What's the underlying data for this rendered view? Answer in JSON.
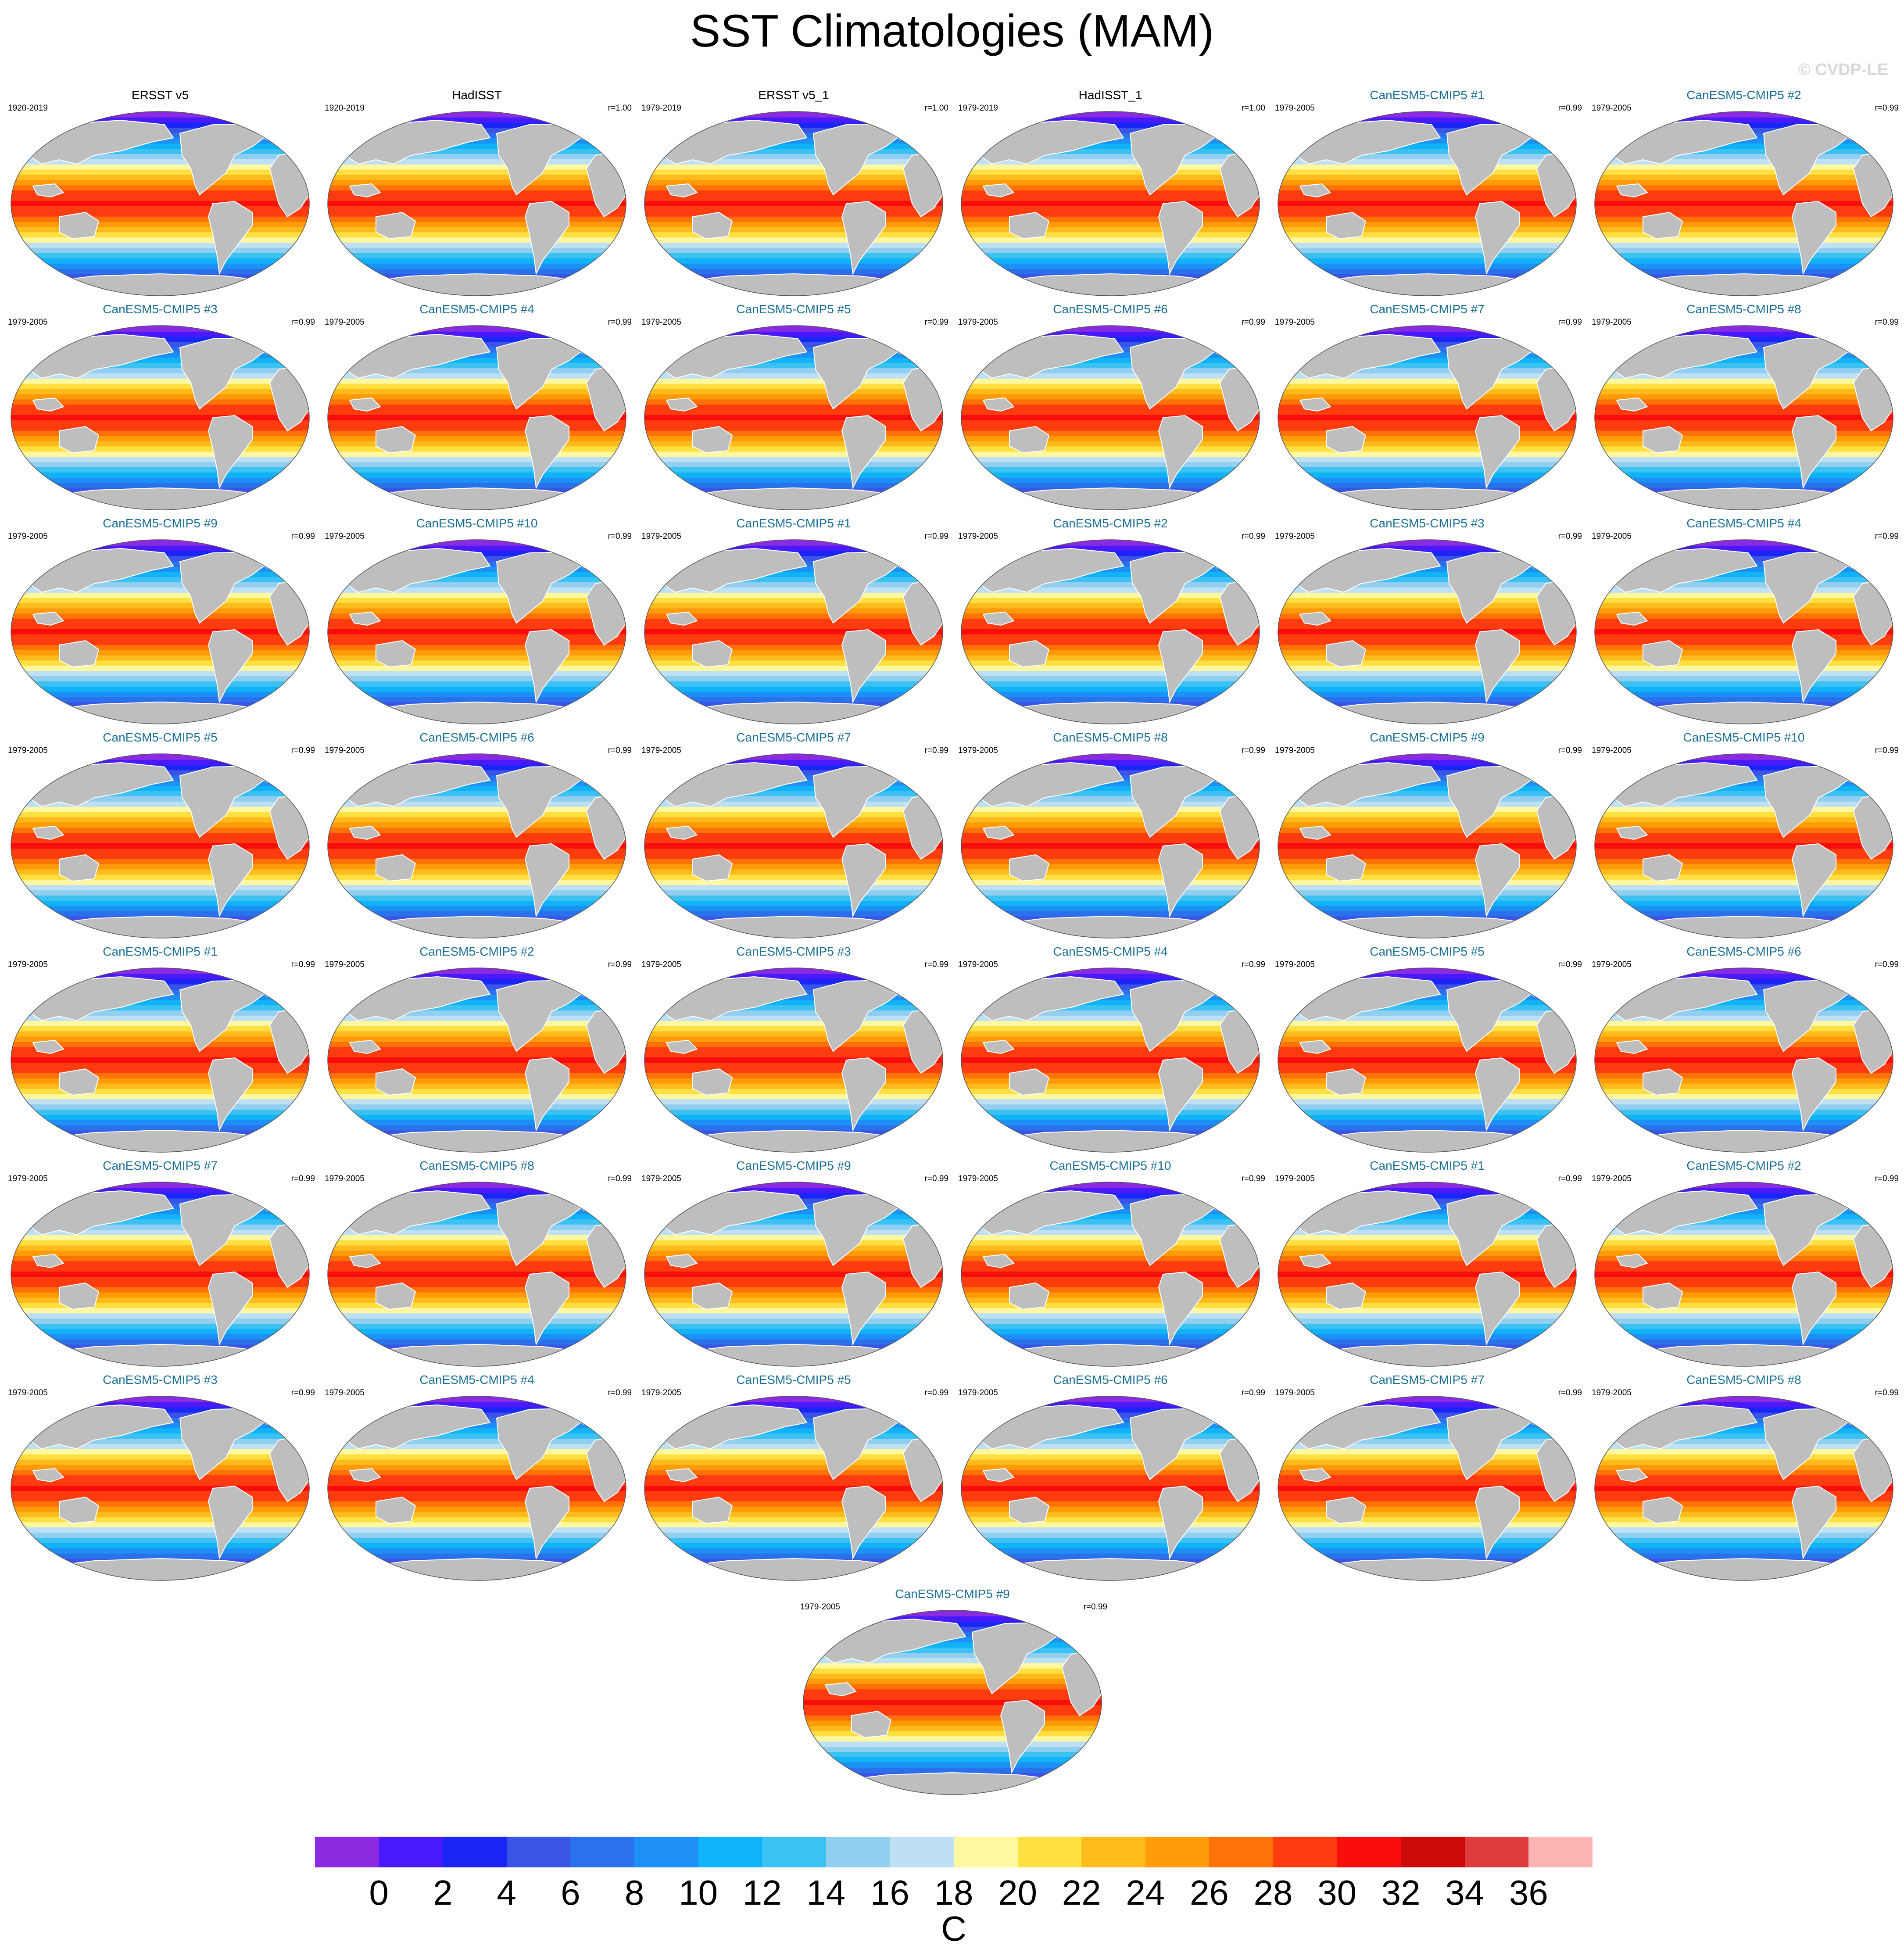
{
  "figure": {
    "title": "SST Climatologies (MAM)",
    "watermark": "© CVDP-LE"
  },
  "chart_data": {
    "type": "heatmap",
    "description_kind": "small multiples of global sea surface temperature climatology maps",
    "panels": [
      {
        "title": "ERSST v5",
        "period": "1920-2019",
        "r": "",
        "kind": "obs"
      },
      {
        "title": "HadISST",
        "period": "1920-2019",
        "r": "r=1.00",
        "kind": "obs"
      },
      {
        "title": "ERSST v5_1",
        "period": "1979-2019",
        "r": "r=1.00",
        "kind": "obs"
      },
      {
        "title": "HadISST_1",
        "period": "1979-2019",
        "r": "r=1.00",
        "kind": "obs"
      },
      {
        "title": "CanESM5-CMIP5 #1",
        "period": "1979-2005",
        "r": "r=0.99",
        "kind": "model"
      },
      {
        "title": "CanESM5-CMIP5 #2",
        "period": "1979-2005",
        "r": "r=0.99",
        "kind": "model"
      },
      {
        "title": "CanESM5-CMIP5 #3",
        "period": "1979-2005",
        "r": "r=0.99",
        "kind": "model"
      },
      {
        "title": "CanESM5-CMIP5 #4",
        "period": "1979-2005",
        "r": "r=0.99",
        "kind": "model"
      },
      {
        "title": "CanESM5-CMIP5 #5",
        "period": "1979-2005",
        "r": "r=0.99",
        "kind": "model"
      },
      {
        "title": "CanESM5-CMIP5 #6",
        "period": "1979-2005",
        "r": "r=0.99",
        "kind": "model"
      },
      {
        "title": "CanESM5-CMIP5 #7",
        "period": "1979-2005",
        "r": "r=0.99",
        "kind": "model"
      },
      {
        "title": "CanESM5-CMIP5 #8",
        "period": "1979-2005",
        "r": "r=0.99",
        "kind": "model"
      },
      {
        "title": "CanESM5-CMIP5 #9",
        "period": "1979-2005",
        "r": "r=0.99",
        "kind": "model"
      },
      {
        "title": "CanESM5-CMIP5 #10",
        "period": "1979-2005",
        "r": "r=0.99",
        "kind": "model"
      },
      {
        "title": "CanESM5-CMIP5 #1",
        "period": "1979-2005",
        "r": "r=0.99",
        "kind": "model"
      },
      {
        "title": "CanESM5-CMIP5 #2",
        "period": "1979-2005",
        "r": "r=0.99",
        "kind": "model"
      },
      {
        "title": "CanESM5-CMIP5 #3",
        "period": "1979-2005",
        "r": "r=0.99",
        "kind": "model"
      },
      {
        "title": "CanESM5-CMIP5 #4",
        "period": "1979-2005",
        "r": "r=0.99",
        "kind": "model"
      },
      {
        "title": "CanESM5-CMIP5 #5",
        "period": "1979-2005",
        "r": "r=0.99",
        "kind": "model"
      },
      {
        "title": "CanESM5-CMIP5 #6",
        "period": "1979-2005",
        "r": "r=0.99",
        "kind": "model"
      },
      {
        "title": "CanESM5-CMIP5 #7",
        "period": "1979-2005",
        "r": "r=0.99",
        "kind": "model"
      },
      {
        "title": "CanESM5-CMIP5 #8",
        "period": "1979-2005",
        "r": "r=0.99",
        "kind": "model"
      },
      {
        "title": "CanESM5-CMIP5 #9",
        "period": "1979-2005",
        "r": "r=0.99",
        "kind": "model"
      },
      {
        "title": "CanESM5-CMIP5 #10",
        "period": "1979-2005",
        "r": "r=0.99",
        "kind": "model"
      },
      {
        "title": "CanESM5-CMIP5 #1",
        "period": "1979-2005",
        "r": "r=0.99",
        "kind": "model"
      },
      {
        "title": "CanESM5-CMIP5 #2",
        "period": "1979-2005",
        "r": "r=0.99",
        "kind": "model"
      },
      {
        "title": "CanESM5-CMIP5 #3",
        "period": "1979-2005",
        "r": "r=0.99",
        "kind": "model"
      },
      {
        "title": "CanESM5-CMIP5 #4",
        "period": "1979-2005",
        "r": "r=0.99",
        "kind": "model"
      },
      {
        "title": "CanESM5-CMIP5 #5",
        "period": "1979-2005",
        "r": "r=0.99",
        "kind": "model"
      },
      {
        "title": "CanESM5-CMIP5 #6",
        "period": "1979-2005",
        "r": "r=0.99",
        "kind": "model"
      },
      {
        "title": "CanESM5-CMIP5 #7",
        "period": "1979-2005",
        "r": "r=0.99",
        "kind": "model"
      },
      {
        "title": "CanESM5-CMIP5 #8",
        "period": "1979-2005",
        "r": "r=0.99",
        "kind": "model"
      },
      {
        "title": "CanESM5-CMIP5 #9",
        "period": "1979-2005",
        "r": "r=0.99",
        "kind": "model"
      },
      {
        "title": "CanESM5-CMIP5 #10",
        "period": "1979-2005",
        "r": "r=0.99",
        "kind": "model"
      },
      {
        "title": "CanESM5-CMIP5 #1",
        "period": "1979-2005",
        "r": "r=0.99",
        "kind": "model"
      },
      {
        "title": "CanESM5-CMIP5 #2",
        "period": "1979-2005",
        "r": "r=0.99",
        "kind": "model"
      },
      {
        "title": "CanESM5-CMIP5 #3",
        "period": "1979-2005",
        "r": "r=0.99",
        "kind": "model"
      },
      {
        "title": "CanESM5-CMIP5 #4",
        "period": "1979-2005",
        "r": "r=0.99",
        "kind": "model"
      },
      {
        "title": "CanESM5-CMIP5 #5",
        "period": "1979-2005",
        "r": "r=0.99",
        "kind": "model"
      },
      {
        "title": "CanESM5-CMIP5 #6",
        "period": "1979-2005",
        "r": "r=0.99",
        "kind": "model"
      },
      {
        "title": "CanESM5-CMIP5 #7",
        "period": "1979-2005",
        "r": "r=0.99",
        "kind": "model"
      },
      {
        "title": "CanESM5-CMIP5 #8",
        "period": "1979-2005",
        "r": "r=0.99",
        "kind": "model"
      },
      {
        "title": "CanESM5-CMIP5 #9",
        "period": "1979-2005",
        "r": "r=0.99",
        "kind": "model"
      }
    ],
    "colorbar": {
      "unit": "C",
      "levels": [
        0,
        2,
        4,
        6,
        8,
        10,
        12,
        14,
        16,
        18,
        20,
        22,
        24,
        26,
        28,
        30,
        32,
        34,
        36
      ],
      "colors": [
        "#8a2be2",
        "#4a1aff",
        "#1a26f5",
        "#3a55e6",
        "#2a72ec",
        "#1c90f5",
        "#10b2f8",
        "#3cc2f2",
        "#92cef0",
        "#bde0f5",
        "#fff8a0",
        "#ffe040",
        "#ffbb1c",
        "#ff9a08",
        "#ff7208",
        "#ff3c10",
        "#f80c0c",
        "#cc0a0a",
        "#dc3c3c",
        "#ffb4b4"
      ]
    },
    "land_color": "#bebebe"
  }
}
